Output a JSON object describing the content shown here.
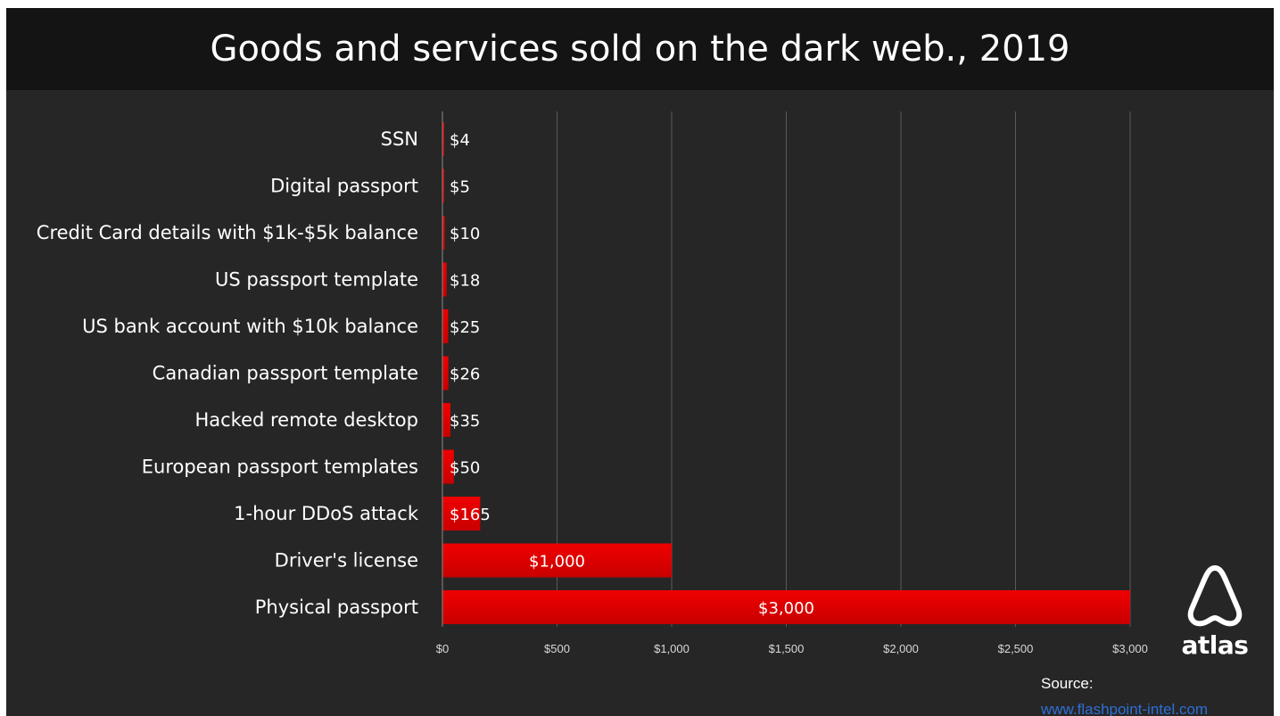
{
  "chart_data": {
    "type": "bar",
    "orientation": "horizontal",
    "title": "Goods and services sold on the dark web., 2019",
    "categories": [
      "SSN",
      "Digital passport",
      "Credit Card details with $1k-$5k balance",
      "US passport template",
      "US bank account with $10k balance",
      "Canadian passport template",
      "Hacked remote desktop",
      "European passport templates",
      "1-hour DDoS attack",
      "Driver's license",
      "Physical passport"
    ],
    "values": [
      4,
      5,
      10,
      18,
      25,
      26,
      35,
      50,
      165,
      1000,
      3000
    ],
    "data_labels": [
      "$4",
      "$5",
      "$10",
      "$18",
      "$25",
      "$26",
      "$35",
      "$50",
      "$165",
      "$1,000",
      "$3,000"
    ],
    "x_ticks": [
      0,
      500,
      1000,
      1500,
      2000,
      2500,
      3000
    ],
    "x_tick_labels": [
      "$0",
      "$500",
      "$1,000",
      "$1,500",
      "$2,000",
      "$2,500",
      "$3,000"
    ],
    "xlim": [
      0,
      3000
    ],
    "grid": "vertical",
    "legend": "none",
    "xlabel": "",
    "ylabel": "",
    "bar_color": "#e00000",
    "background_color": "#262626"
  },
  "branding": {
    "logo_text": "atlas",
    "source_label": "Source:",
    "source_url": "www.flashpoint-intel.com"
  }
}
